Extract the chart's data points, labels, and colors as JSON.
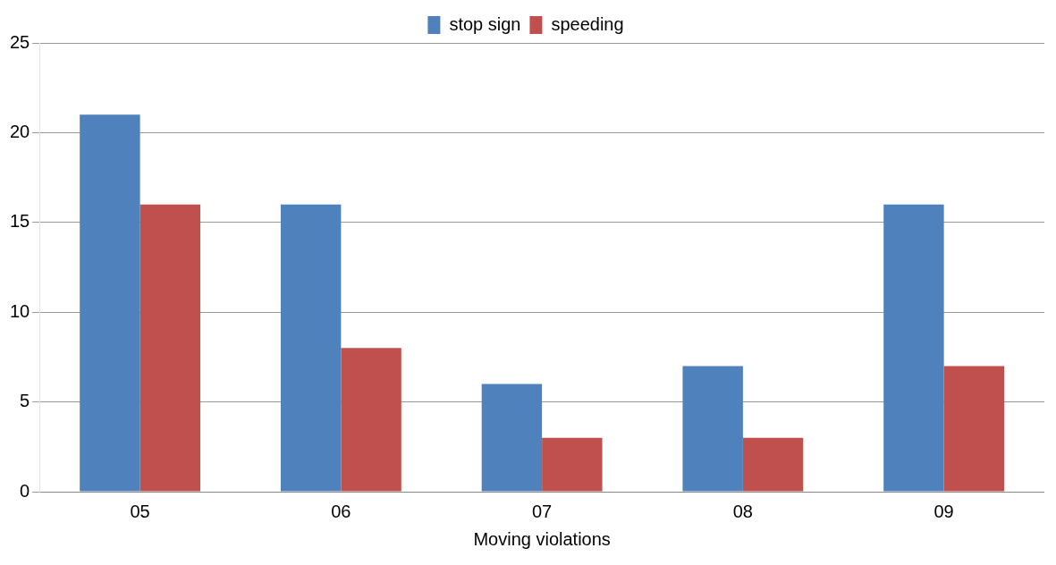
{
  "chart_data": {
    "type": "bar",
    "xlabel": "Moving violations",
    "categories": [
      "05",
      "06",
      "07",
      "08",
      "09"
    ],
    "series": [
      {
        "name": "stop sign",
        "color": "#4f81bd",
        "values": [
          21,
          16,
          6,
          7,
          16
        ]
      },
      {
        "name": "speeding",
        "color": "#c0504d",
        "values": [
          16,
          8,
          3,
          3,
          7
        ]
      }
    ],
    "ylim": [
      0,
      25
    ],
    "yticks": [
      0,
      5,
      10,
      15,
      20,
      25
    ],
    "grid": "y",
    "legend": "top"
  }
}
